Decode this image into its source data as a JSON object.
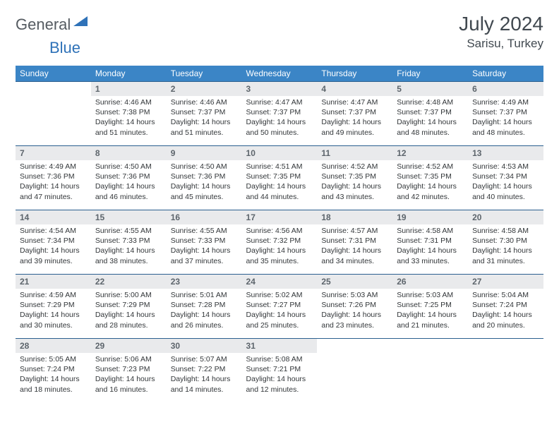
{
  "brand": {
    "text1": "General",
    "text2": "Blue",
    "triangle_color": "#2f72b8"
  },
  "title": {
    "month_year": "July 2024",
    "location": "Sarisu, Turkey"
  },
  "colors": {
    "header_bg": "#3b85c6",
    "header_fg": "#ffffff",
    "daynum_bg": "#e9eaec",
    "daynum_fg": "#5d656c",
    "row_border": "#2b5f8f",
    "body_text": "#323639",
    "logo_gray": "#555b61",
    "logo_blue": "#2f72b8"
  },
  "day_headers": [
    "Sunday",
    "Monday",
    "Tuesday",
    "Wednesday",
    "Thursday",
    "Friday",
    "Saturday"
  ],
  "weeks": [
    {
      "nums": [
        "",
        "1",
        "2",
        "3",
        "4",
        "5",
        "6"
      ],
      "cells": [
        "",
        "Sunrise: 4:46 AM\nSunset: 7:38 PM\nDaylight: 14 hours and 51 minutes.",
        "Sunrise: 4:46 AM\nSunset: 7:37 PM\nDaylight: 14 hours and 51 minutes.",
        "Sunrise: 4:47 AM\nSunset: 7:37 PM\nDaylight: 14 hours and 50 minutes.",
        "Sunrise: 4:47 AM\nSunset: 7:37 PM\nDaylight: 14 hours and 49 minutes.",
        "Sunrise: 4:48 AM\nSunset: 7:37 PM\nDaylight: 14 hours and 48 minutes.",
        "Sunrise: 4:49 AM\nSunset: 7:37 PM\nDaylight: 14 hours and 48 minutes."
      ]
    },
    {
      "nums": [
        "7",
        "8",
        "9",
        "10",
        "11",
        "12",
        "13"
      ],
      "cells": [
        "Sunrise: 4:49 AM\nSunset: 7:36 PM\nDaylight: 14 hours and 47 minutes.",
        "Sunrise: 4:50 AM\nSunset: 7:36 PM\nDaylight: 14 hours and 46 minutes.",
        "Sunrise: 4:50 AM\nSunset: 7:36 PM\nDaylight: 14 hours and 45 minutes.",
        "Sunrise: 4:51 AM\nSunset: 7:35 PM\nDaylight: 14 hours and 44 minutes.",
        "Sunrise: 4:52 AM\nSunset: 7:35 PM\nDaylight: 14 hours and 43 minutes.",
        "Sunrise: 4:52 AM\nSunset: 7:35 PM\nDaylight: 14 hours and 42 minutes.",
        "Sunrise: 4:53 AM\nSunset: 7:34 PM\nDaylight: 14 hours and 40 minutes."
      ]
    },
    {
      "nums": [
        "14",
        "15",
        "16",
        "17",
        "18",
        "19",
        "20"
      ],
      "cells": [
        "Sunrise: 4:54 AM\nSunset: 7:34 PM\nDaylight: 14 hours and 39 minutes.",
        "Sunrise: 4:55 AM\nSunset: 7:33 PM\nDaylight: 14 hours and 38 minutes.",
        "Sunrise: 4:55 AM\nSunset: 7:33 PM\nDaylight: 14 hours and 37 minutes.",
        "Sunrise: 4:56 AM\nSunset: 7:32 PM\nDaylight: 14 hours and 35 minutes.",
        "Sunrise: 4:57 AM\nSunset: 7:31 PM\nDaylight: 14 hours and 34 minutes.",
        "Sunrise: 4:58 AM\nSunset: 7:31 PM\nDaylight: 14 hours and 33 minutes.",
        "Sunrise: 4:58 AM\nSunset: 7:30 PM\nDaylight: 14 hours and 31 minutes."
      ]
    },
    {
      "nums": [
        "21",
        "22",
        "23",
        "24",
        "25",
        "26",
        "27"
      ],
      "cells": [
        "Sunrise: 4:59 AM\nSunset: 7:29 PM\nDaylight: 14 hours and 30 minutes.",
        "Sunrise: 5:00 AM\nSunset: 7:29 PM\nDaylight: 14 hours and 28 minutes.",
        "Sunrise: 5:01 AM\nSunset: 7:28 PM\nDaylight: 14 hours and 26 minutes.",
        "Sunrise: 5:02 AM\nSunset: 7:27 PM\nDaylight: 14 hours and 25 minutes.",
        "Sunrise: 5:03 AM\nSunset: 7:26 PM\nDaylight: 14 hours and 23 minutes.",
        "Sunrise: 5:03 AM\nSunset: 7:25 PM\nDaylight: 14 hours and 21 minutes.",
        "Sunrise: 5:04 AM\nSunset: 7:24 PM\nDaylight: 14 hours and 20 minutes."
      ]
    },
    {
      "nums": [
        "28",
        "29",
        "30",
        "31",
        "",
        "",
        ""
      ],
      "cells": [
        "Sunrise: 5:05 AM\nSunset: 7:24 PM\nDaylight: 14 hours and 18 minutes.",
        "Sunrise: 5:06 AM\nSunset: 7:23 PM\nDaylight: 14 hours and 16 minutes.",
        "Sunrise: 5:07 AM\nSunset: 7:22 PM\nDaylight: 14 hours and 14 minutes.",
        "Sunrise: 5:08 AM\nSunset: 7:21 PM\nDaylight: 14 hours and 12 minutes.",
        "",
        "",
        ""
      ]
    }
  ]
}
